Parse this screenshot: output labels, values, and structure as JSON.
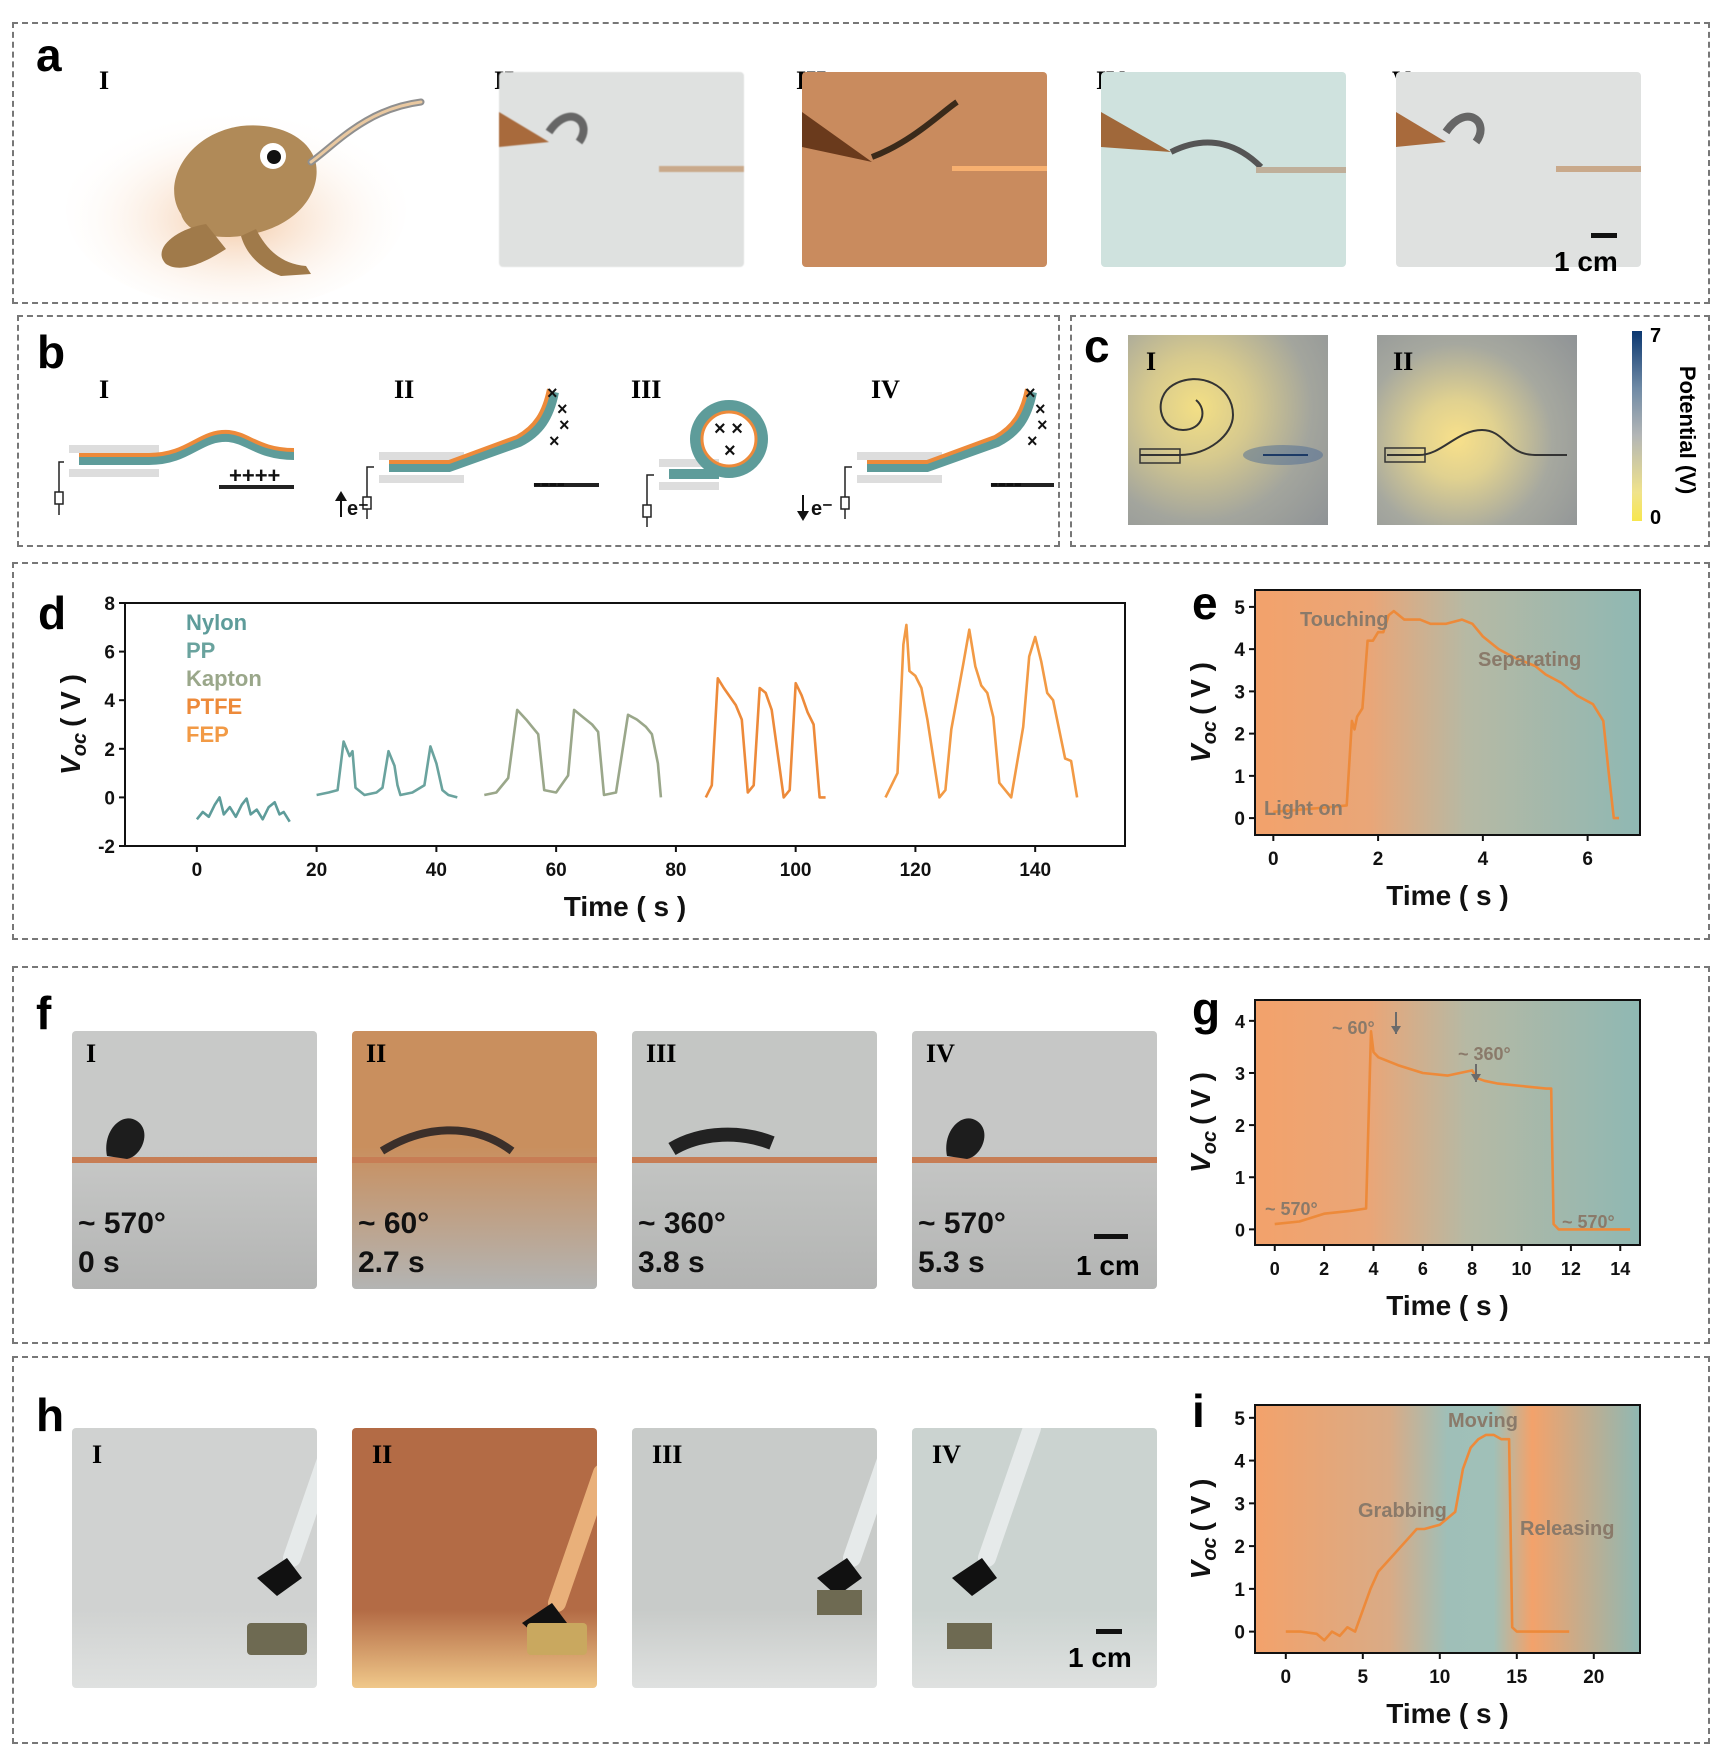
{
  "panels": {
    "a": {
      "label": "a",
      "sub": [
        "I",
        "II",
        "III",
        "IV",
        "V"
      ],
      "scale": "1 cm"
    },
    "b": {
      "label": "b",
      "sub": [
        "I",
        "II",
        "III",
        "IV"
      ],
      "electron": "e⁻",
      "plus": "++++",
      "minus": "----"
    },
    "c": {
      "label": "c",
      "sub": [
        "I",
        "II"
      ],
      "colorbar": {
        "max": "7",
        "min": "0",
        "title": "Potential (V)"
      }
    },
    "d": {
      "label": "d"
    },
    "e": {
      "label": "e"
    },
    "f": {
      "label": "f",
      "sub": [
        "I",
        "II",
        "III",
        "IV"
      ],
      "angles": [
        "~ 570°",
        "~ 60°",
        "~ 360°",
        "~ 570°"
      ],
      "times": [
        "0 s",
        "2.7 s",
        "3.8 s",
        "5.3 s"
      ],
      "scale": "1 cm"
    },
    "g": {
      "label": "g"
    },
    "h": {
      "label": "h",
      "sub": [
        "I",
        "II",
        "III",
        "IV"
      ],
      "scale": "1 cm"
    },
    "i": {
      "label": "i"
    }
  },
  "chart_data": [
    {
      "id": "d",
      "type": "line",
      "xlabel": "Time ( s )",
      "ylabel": "V",
      "ylabel_sub": "oc",
      "ylabel_unit": "( V )",
      "xlim": [
        -12,
        155
      ],
      "ylim": [
        -2,
        8
      ],
      "xticks": [
        "0",
        "20",
        "40",
        "60",
        "80",
        "100",
        "120",
        "140"
      ],
      "yticks": [
        "-2",
        "0",
        "2",
        "4",
        "6",
        "8"
      ],
      "legend": [
        "Nylon",
        "PP",
        "Kapton",
        "PTFE",
        "FEP"
      ],
      "series": [
        {
          "name": "Nylon",
          "color": "#5e9c9a",
          "x": [
            0,
            1,
            2,
            3,
            3.8,
            4.5,
            5.5,
            6.5,
            7.5,
            8.3,
            9,
            10,
            11,
            12,
            13,
            13.8,
            14.5,
            15.5
          ],
          "y": [
            -0.9,
            -0.6,
            -0.8,
            -0.3,
            0,
            -0.7,
            -0.4,
            -0.8,
            -0.3,
            -0.05,
            -0.7,
            -0.5,
            -0.9,
            -0.4,
            -0.2,
            -0.7,
            -0.6,
            -1.0
          ]
        },
        {
          "name": "PP",
          "color": "#6aa39e",
          "x": [
            20,
            22,
            23.5,
            24.5,
            25.5,
            26,
            26.5,
            28,
            30,
            31,
            32,
            33,
            33.5,
            34,
            36,
            38,
            39,
            40,
            41,
            42,
            43.5
          ],
          "y": [
            0.1,
            0.2,
            0.3,
            2.3,
            1.7,
            1.9,
            0.4,
            0.1,
            0.2,
            0.4,
            1.9,
            1.3,
            0.5,
            0.1,
            0.2,
            0.5,
            2.1,
            1.4,
            0.3,
            0.1,
            0
          ]
        },
        {
          "name": "Kapton",
          "color": "#9aa78a",
          "x": [
            48,
            50,
            52,
            53.5,
            55,
            56,
            57,
            58,
            60,
            62,
            63,
            64.5,
            66,
            67,
            68,
            70,
            72,
            73.5,
            75,
            76,
            77,
            77.5
          ],
          "y": [
            0.1,
            0.2,
            0.8,
            3.6,
            3.2,
            2.9,
            2.6,
            0.3,
            0.2,
            0.9,
            3.6,
            3.3,
            3.0,
            2.7,
            0.1,
            0.2,
            3.4,
            3.2,
            2.9,
            2.6,
            1.4,
            0
          ]
        },
        {
          "name": "PTFE",
          "color": "#ed8a3a",
          "x": [
            85,
            86,
            87,
            88,
            90,
            91,
            92,
            93,
            94,
            95,
            96,
            98,
            99,
            100,
            101,
            102,
            103,
            104,
            105
          ],
          "y": [
            0,
            0.5,
            4.9,
            4.5,
            3.8,
            3.2,
            0.2,
            0.5,
            4.5,
            4.3,
            3.6,
            0,
            0.3,
            4.7,
            4.2,
            3.5,
            3.0,
            0,
            0
          ]
        },
        {
          "name": "FEP",
          "color": "#f29a45",
          "x": [
            115,
            117,
            118,
            118.5,
            119,
            120,
            121,
            122,
            124,
            125,
            126,
            128,
            129,
            130,
            131,
            132,
            133,
            134,
            136,
            138,
            139,
            140,
            141,
            142,
            143,
            144,
            145,
            146,
            147
          ],
          "y": [
            0,
            1,
            6.3,
            7.1,
            5.2,
            5.0,
            4.5,
            3.2,
            0,
            0.3,
            2.8,
            5.5,
            6.9,
            5.4,
            4.6,
            4.3,
            3.3,
            0.6,
            0,
            2.9,
            5.8,
            6.6,
            5.6,
            4.3,
            4.0,
            2.8,
            1.6,
            1.5,
            0
          ]
        }
      ]
    },
    {
      "id": "e",
      "type": "line",
      "xlabel": "Time ( s )",
      "ylabel": "V",
      "ylabel_sub": "oc",
      "ylabel_unit": "( V )",
      "xlim": [
        -0.35,
        7.0
      ],
      "ylim": [
        -0.4,
        5.4
      ],
      "xticks": [
        "0",
        "2",
        "4",
        "6"
      ],
      "yticks": [
        "0",
        "1",
        "2",
        "3",
        "4",
        "5"
      ],
      "annotations": [
        "Touching",
        "Separating",
        "Light on"
      ],
      "series": [
        {
          "name": "",
          "color": "#ed8a3a",
          "x": [
            0,
            0.5,
            1.0,
            1.4,
            1.5,
            1.55,
            1.6,
            1.7,
            1.8,
            1.9,
            2.0,
            2.1,
            2.2,
            2.3,
            2.5,
            2.8,
            3.0,
            3.3,
            3.6,
            3.8,
            4.0,
            4.3,
            4.6,
            5.0,
            5.2,
            5.5,
            5.8,
            6.1,
            6.3,
            6.4,
            6.5,
            6.6
          ],
          "y": [
            0.15,
            0.2,
            0.25,
            0.3,
            2.3,
            2.1,
            2.4,
            2.6,
            4.2,
            4.2,
            4.4,
            4.4,
            4.8,
            4.9,
            4.7,
            4.7,
            4.6,
            4.6,
            4.7,
            4.6,
            4.3,
            4.0,
            3.8,
            3.6,
            3.4,
            3.2,
            2.9,
            2.7,
            2.3,
            1.1,
            0,
            0
          ]
        }
      ]
    },
    {
      "id": "g",
      "type": "line",
      "xlabel": "Time ( s )",
      "ylabel": "V",
      "ylabel_sub": "oc",
      "ylabel_unit": "( V )",
      "xlim": [
        -0.8,
        14.8
      ],
      "ylim": [
        -0.3,
        4.4
      ],
      "xticks": [
        "0",
        "2",
        "4",
        "6",
        "8",
        "10",
        "12",
        "14"
      ],
      "yticks": [
        "0",
        "1",
        "2",
        "3",
        "4"
      ],
      "annotations": [
        "~ 60°",
        "~ 360°",
        "~ 570°",
        "~ 570°"
      ],
      "series": [
        {
          "name": "",
          "color": "#ed8a3a",
          "x": [
            0,
            1,
            2,
            3,
            3.7,
            3.9,
            4.0,
            4.2,
            5,
            6,
            7,
            7.5,
            8,
            8.2,
            8.5,
            9,
            10,
            11,
            11.2,
            11.3,
            11.5,
            12,
            13,
            14,
            14.4
          ],
          "y": [
            0.1,
            0.15,
            0.3,
            0.35,
            0.4,
            3.8,
            3.4,
            3.3,
            3.15,
            3.0,
            2.95,
            3.0,
            3.05,
            2.9,
            2.85,
            2.8,
            2.75,
            2.7,
            2.7,
            0.1,
            0.0,
            0.0,
            0.0,
            0.0,
            0.0
          ]
        }
      ]
    },
    {
      "id": "i",
      "type": "line",
      "xlabel": "Time ( s )",
      "ylabel": "V",
      "ylabel_sub": "oc",
      "ylabel_unit": "( V )",
      "xlim": [
        -2,
        23
      ],
      "ylim": [
        -0.5,
        5.3
      ],
      "xticks": [
        "0",
        "5",
        "10",
        "15",
        "20"
      ],
      "yticks": [
        "0",
        "1",
        "2",
        "3",
        "4",
        "5"
      ],
      "annotations": [
        "Moving",
        "Grabbing",
        "Releasing"
      ],
      "series": [
        {
          "name": "",
          "color": "#ed8a3a",
          "x": [
            0,
            1,
            2,
            2.5,
            3,
            3.5,
            4,
            4.5,
            5,
            5.5,
            6,
            7,
            8,
            8.5,
            9,
            10,
            11,
            11.5,
            12,
            12.5,
            13,
            13.5,
            14,
            14.5,
            14.7,
            15,
            16,
            17,
            18.4
          ],
          "y": [
            0,
            0,
            -0.05,
            -0.2,
            0,
            -0.1,
            0.1,
            0.0,
            0.5,
            1.0,
            1.4,
            1.8,
            2.2,
            2.4,
            2.4,
            2.5,
            2.8,
            3.8,
            4.3,
            4.5,
            4.6,
            4.6,
            4.5,
            4.5,
            0.1,
            0,
            0,
            0,
            0
          ]
        }
      ]
    }
  ]
}
